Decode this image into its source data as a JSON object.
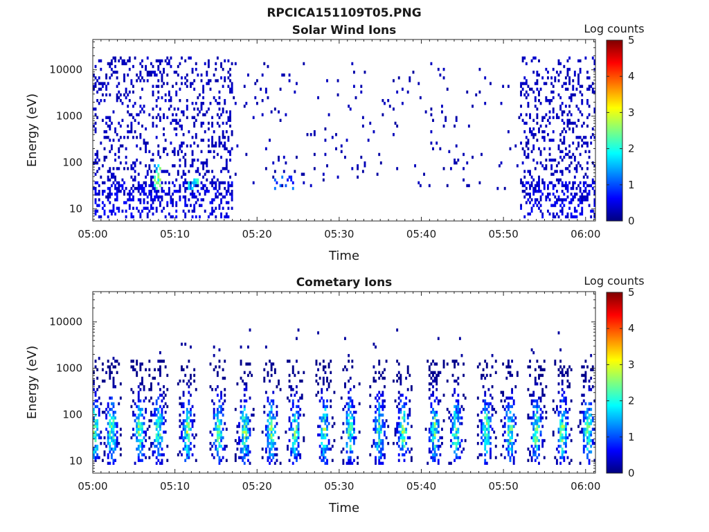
{
  "figure": {
    "title": "RPCICA151109T05.PNG"
  },
  "colormap": {
    "name": "jet",
    "stops": [
      "#00007f",
      "#0000ff",
      "#007fff",
      "#00ffff",
      "#7fff7f",
      "#ffff00",
      "#ff7f00",
      "#ff0000",
      "#7f0000"
    ]
  },
  "chart_data": [
    {
      "type": "heatmap",
      "title": "Solar Wind Ions",
      "xlabel": "Time",
      "ylabel": "Energy (eV)",
      "x_ticks": [
        "05:00",
        "05:10",
        "05:20",
        "05:30",
        "05:40",
        "05:50",
        "06:00"
      ],
      "x_range_minutes": [
        0,
        61.2
      ],
      "y_scale": "log",
      "y_range_eV": [
        5.5,
        45000
      ],
      "y_ticks": [
        {
          "value": 10,
          "label": "10"
        },
        {
          "value": 100,
          "label": "100"
        },
        {
          "value": 1000,
          "label": "1000"
        },
        {
          "value": 10000,
          "label": "10000"
        }
      ],
      "colorbar": {
        "label": "Log counts",
        "range": [
          0,
          5
        ],
        "ticks": [
          "0",
          "1",
          "2",
          "3",
          "4",
          "5"
        ]
      },
      "grid": false,
      "regions": [
        {
          "t_start": 0,
          "t_end": 17,
          "e_min": 15,
          "e_max": 20000,
          "density": 0.18,
          "level": 0.3
        },
        {
          "t_start": 0,
          "t_end": 17,
          "e_min": 6,
          "e_max": 40,
          "density": 0.28,
          "level": 0.5
        },
        {
          "t_start": 7.5,
          "t_end": 8.3,
          "e_min": 25,
          "e_max": 90,
          "density": 0.5,
          "level": 1.9
        },
        {
          "t_start": 11.5,
          "t_end": 12.8,
          "e_min": 25,
          "e_max": 45,
          "density": 0.6,
          "level": 1.7
        },
        {
          "t_start": 17,
          "t_end": 52,
          "e_min": 25,
          "e_max": 15000,
          "density": 0.025,
          "level": 0.25
        },
        {
          "t_start": 22,
          "t_end": 24.5,
          "e_min": 25,
          "e_max": 55,
          "density": 0.3,
          "level": 0.9
        },
        {
          "t_start": 52,
          "t_end": 61.2,
          "e_min": 15,
          "e_max": 20000,
          "density": 0.2,
          "level": 0.3
        },
        {
          "t_start": 52,
          "t_end": 61.2,
          "e_min": 6,
          "e_max": 40,
          "density": 0.25,
          "level": 0.5
        }
      ]
    },
    {
      "type": "heatmap",
      "title": "Cometary Ions",
      "xlabel": "Time",
      "ylabel": "Energy (eV)",
      "x_ticks": [
        "05:00",
        "05:10",
        "05:20",
        "05:30",
        "05:40",
        "05:50",
        "06:00"
      ],
      "x_range_minutes": [
        0,
        61.2
      ],
      "y_scale": "log",
      "y_range_eV": [
        5.5,
        45000
      ],
      "y_ticks": [
        {
          "value": 10,
          "label": "10"
        },
        {
          "value": 100,
          "label": "100"
        },
        {
          "value": 1000,
          "label": "1000"
        },
        {
          "value": 10000,
          "label": "10000"
        }
      ],
      "colorbar": {
        "label": "Log counts",
        "range": [
          0,
          5
        ],
        "ticks": [
          "0",
          "1",
          "2",
          "3",
          "4",
          "5"
        ]
      },
      "grid": false,
      "bursts_minutes": [
        0.2,
        2.3,
        5.7,
        8.0,
        11.5,
        15.3,
        18.5,
        21.7,
        24.6,
        28.2,
        31.3,
        34.9,
        37.8,
        41.6,
        44.2,
        47.9,
        50.8,
        54.0,
        57.2,
        60.3
      ],
      "burst_energy_range_eV": [
        8,
        600
      ],
      "burst_peak_eV": 45,
      "peak_level_log_counts": 2.9
    }
  ]
}
